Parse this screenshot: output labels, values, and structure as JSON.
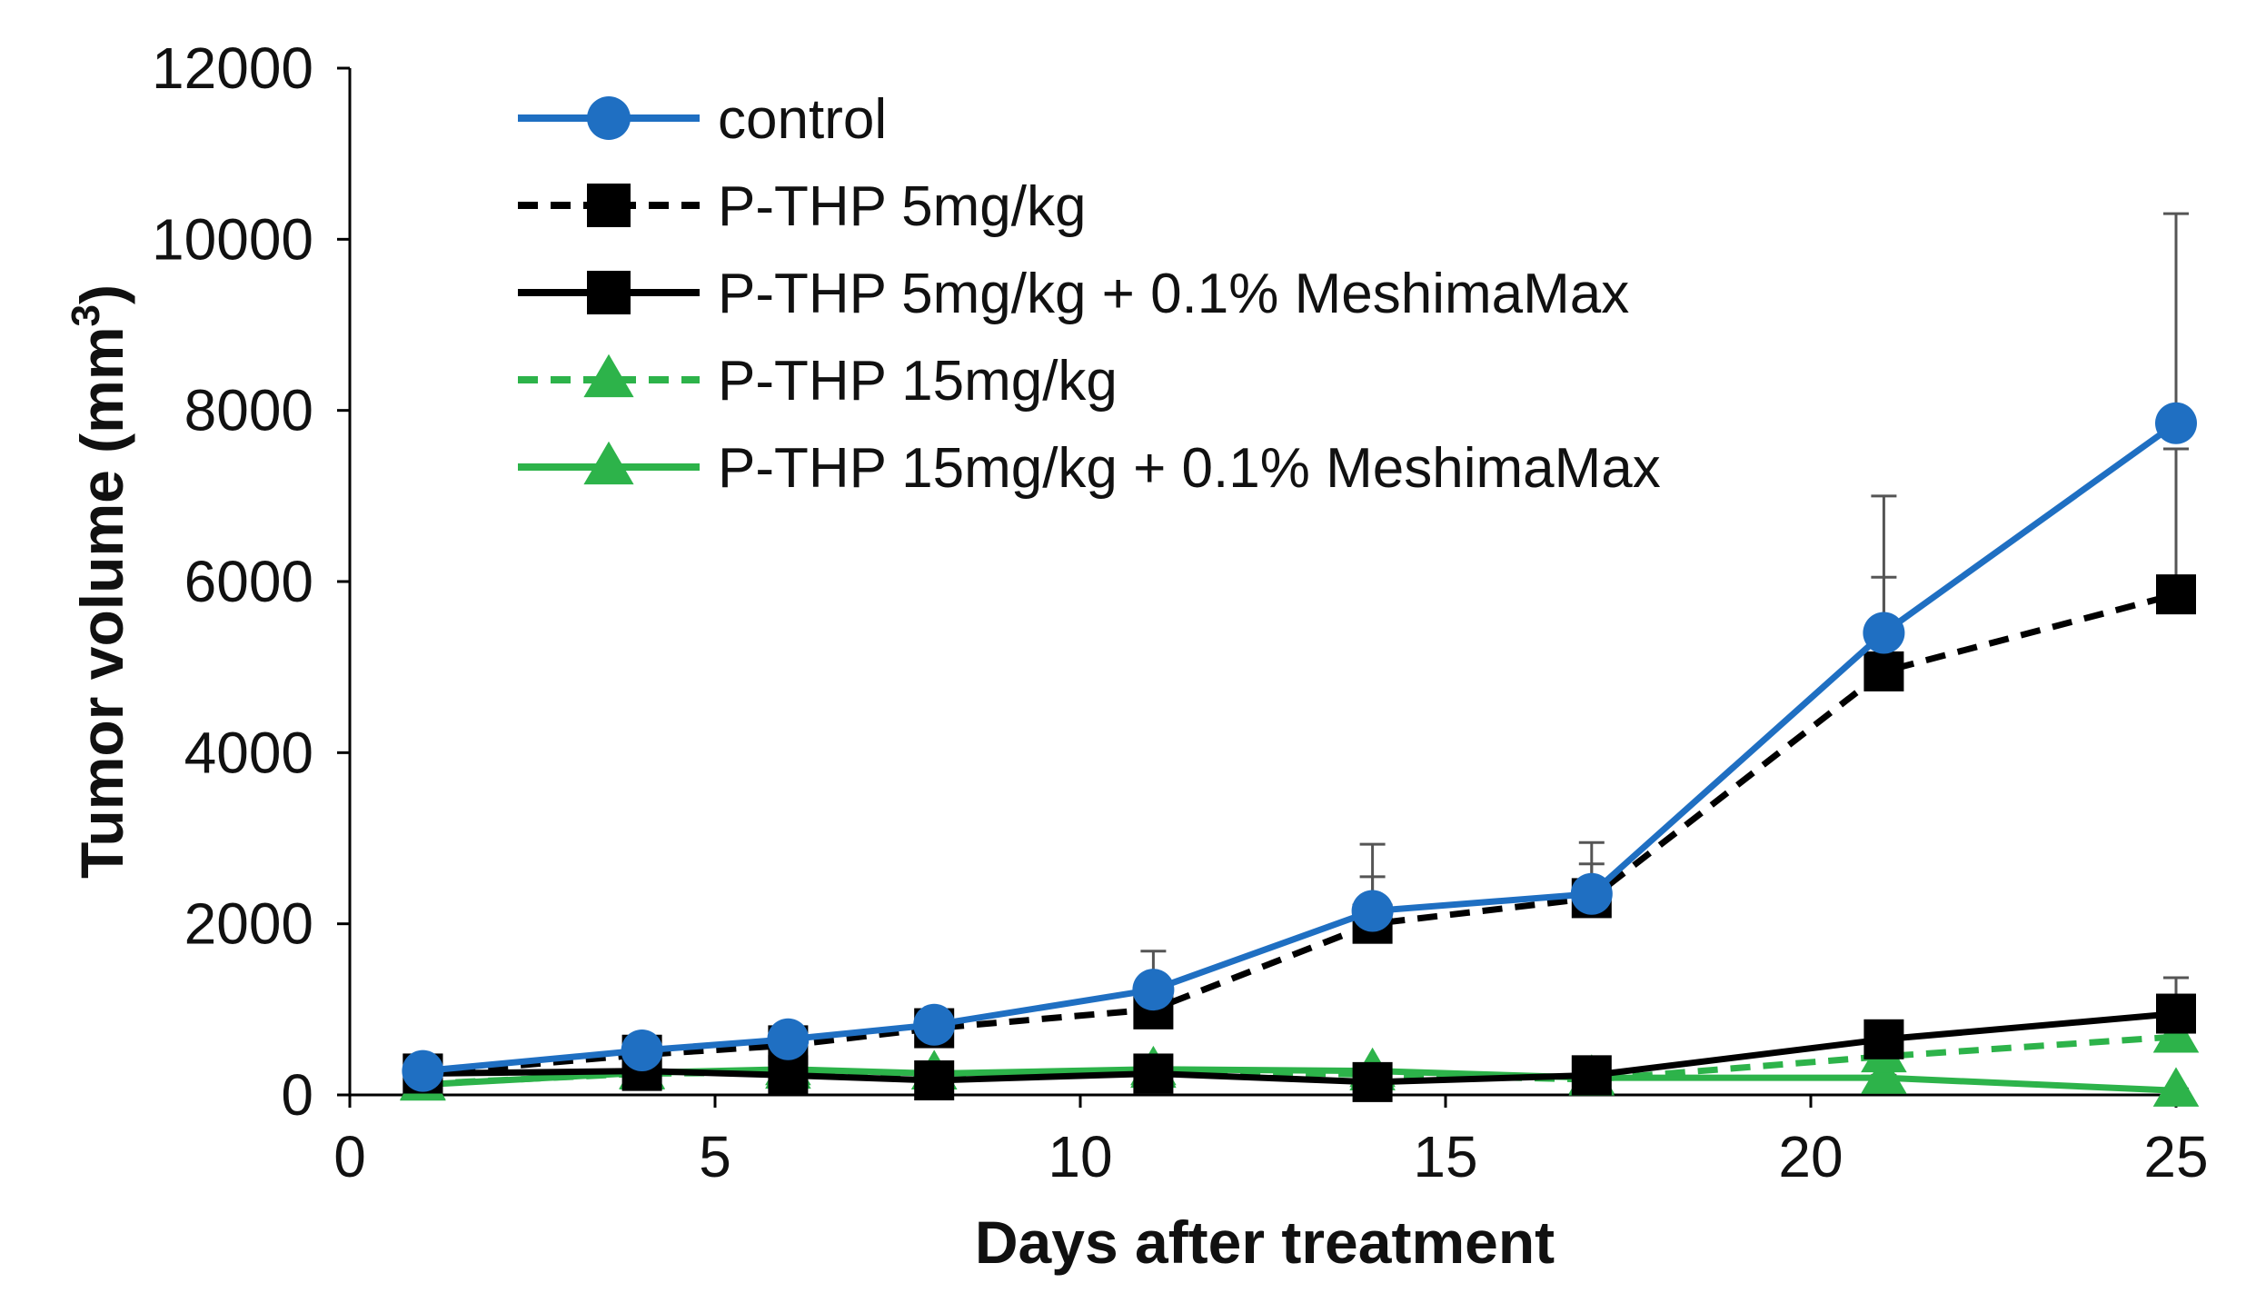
{
  "chart_data": {
    "type": "line",
    "title": "",
    "xlabel": "Days after treatment",
    "ylabel": "Tumor volume (mm",
    "ylabel_sup": "3",
    "ylabel_close": ")",
    "xlim": [
      0,
      25
    ],
    "ylim": [
      0,
      12000
    ],
    "xticks": [
      0,
      5,
      10,
      15,
      20,
      25
    ],
    "yticks": [
      0,
      2000,
      4000,
      6000,
      8000,
      10000,
      12000
    ],
    "legend_position": "top-left",
    "x": [
      1,
      4,
      6,
      8,
      11,
      14,
      17,
      21,
      25
    ],
    "series": [
      {
        "name": "control",
        "color": "#1f6fc2",
        "line": "solid",
        "marker": "circle",
        "values": [
          280,
          520,
          650,
          820,
          1230,
          2150,
          2350,
          5400,
          7850
        ],
        "errors": [
          40,
          60,
          70,
          90,
          450,
          780,
          600,
          1600,
          2450
        ]
      },
      {
        "name": "P-THP 5mg/kg",
        "color": "#000000",
        "line": "dashed",
        "marker": "square",
        "values": [
          250,
          470,
          580,
          780,
          1000,
          2000,
          2300,
          4950,
          5850
        ],
        "errors": [
          30,
          50,
          60,
          80,
          150,
          550,
          400,
          1100,
          1700
        ]
      },
      {
        "name": "P-THP 5mg/kg + 0.1% MeshimaMax",
        "color": "#000000",
        "line": "solid",
        "marker": "square",
        "values": [
          250,
          280,
          230,
          170,
          250,
          150,
          230,
          650,
          950
        ],
        "errors": [
          20,
          30,
          30,
          20,
          30,
          20,
          30,
          100,
          420
        ]
      },
      {
        "name": "P-THP 15mg/kg",
        "color": "#2db34a",
        "line": "dashed",
        "marker": "triangle",
        "values": [
          130,
          250,
          260,
          250,
          270,
          240,
          180,
          450,
          680
        ],
        "errors": [
          20,
          30,
          30,
          30,
          30,
          30,
          20,
          60,
          100
        ]
      },
      {
        "name": "P-THP 15mg/kg + 0.1% MeshimaMax",
        "color": "#2db34a",
        "line": "solid",
        "marker": "triangle",
        "values": [
          120,
          260,
          300,
          250,
          300,
          280,
          200,
          200,
          50
        ],
        "errors": [
          20,
          30,
          40,
          30,
          30,
          30,
          20,
          30,
          20
        ]
      }
    ]
  }
}
